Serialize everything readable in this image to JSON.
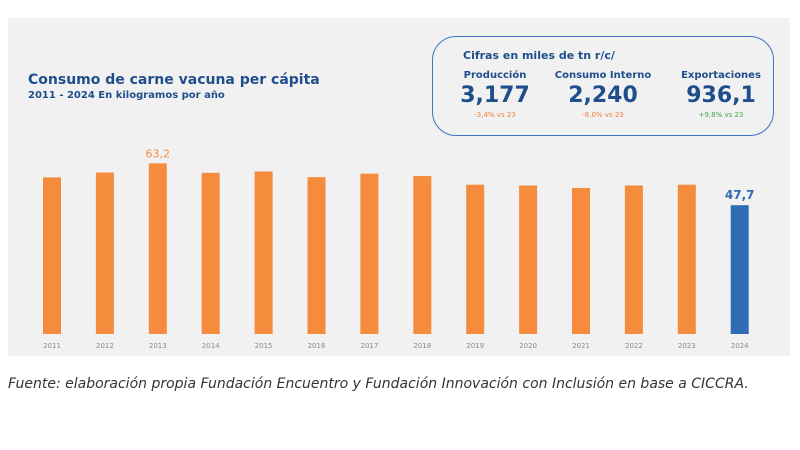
{
  "header": {
    "title": "Consumo de carne vacuna per cápita",
    "subtitle": "2011 - 2024 En kilogramos por año"
  },
  "kpi_box": {
    "heading": "Cifras en miles de tn r/c/",
    "items": [
      {
        "label": "Producción",
        "value": "3,177",
        "change": "-3,4% vs 23",
        "direction": "negative"
      },
      {
        "label": "Consumo Interno",
        "value": "2,240",
        "change": "-8,0% vs 23",
        "direction": "negative"
      },
      {
        "label": "Exportaciones",
        "value": "936,1",
        "change": "+9,8% vs 23",
        "direction": "positive"
      }
    ]
  },
  "colors": {
    "bar": "#f58b3c",
    "highlight": "#2f6cb5",
    "title": "#1f4e8c",
    "negative": "#f0803c",
    "positive": "#3ea846"
  },
  "chart_data": {
    "type": "bar",
    "categories": [
      "2011",
      "2012",
      "2013",
      "2014",
      "2015",
      "2016",
      "2017",
      "2018",
      "2019",
      "2020",
      "2021",
      "2022",
      "2023",
      "2024"
    ],
    "values": [
      58.0,
      59.8,
      63.2,
      59.7,
      60.2,
      58.1,
      59.4,
      58.5,
      55.3,
      55.0,
      54.1,
      55.0,
      55.3,
      47.7
    ],
    "highlight_category": "2024",
    "data_labels": [
      {
        "category": "2013",
        "text": "63,2"
      },
      {
        "category": "2024",
        "text": "47,7"
      }
    ],
    "ylim": [
      0,
      80
    ],
    "grid": false,
    "legend": "none",
    "title": "Consumo de carne vacuna per cápita",
    "xlabel": "",
    "ylabel": ""
  },
  "footer": {
    "source": "Fuente: elaboración propia Fundación Encuentro y  Fundación Innovación con Inclusión en base a CICCRA."
  }
}
